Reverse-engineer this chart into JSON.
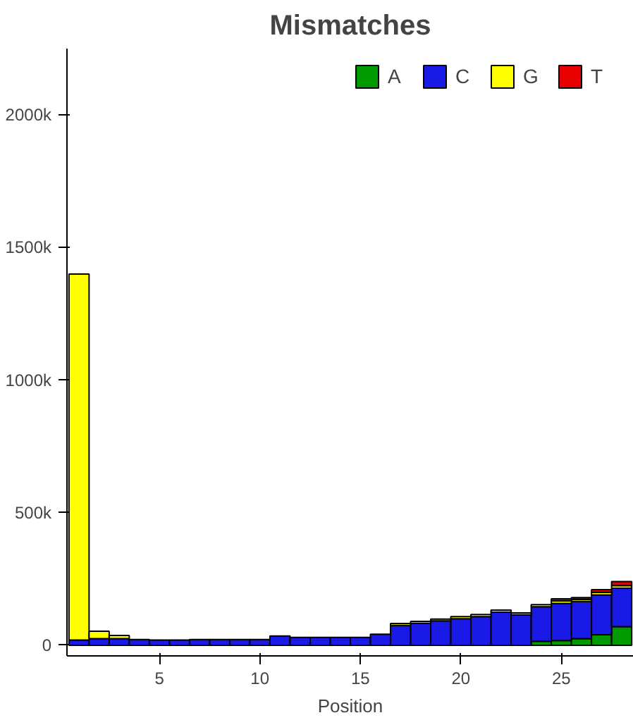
{
  "chart_data": {
    "type": "bar",
    "stacked": true,
    "title": "Mismatches",
    "xlabel": "Position",
    "x": [
      1,
      2,
      3,
      4,
      5,
      6,
      7,
      8,
      9,
      10,
      11,
      12,
      13,
      14,
      15,
      16,
      17,
      18,
      19,
      20,
      21,
      22,
      23,
      24,
      25,
      26,
      27,
      28
    ],
    "series": [
      {
        "name": "A",
        "color": "#009900",
        "values": [
          null,
          null,
          null,
          null,
          null,
          null,
          null,
          null,
          null,
          null,
          null,
          null,
          null,
          null,
          null,
          null,
          null,
          null,
          null,
          null,
          null,
          null,
          null,
          15,
          18,
          25,
          40,
          70
        ]
      },
      {
        "name": "C",
        "color": "#1a1ae6",
        "values": [
          20,
          25,
          25,
          22,
          20,
          20,
          22,
          22,
          22,
          22,
          35,
          30,
          30,
          30,
          30,
          42,
          75,
          83,
          92,
          100,
          108,
          125,
          115,
          130,
          140,
          140,
          150,
          145
        ]
      },
      {
        "name": "G",
        "color": "#ffff00",
        "values": [
          1380,
          28,
          12,
          null,
          null,
          null,
          null,
          null,
          null,
          null,
          null,
          null,
          null,
          null,
          null,
          null,
          7,
          7,
          7,
          8,
          8,
          8,
          7,
          8,
          9,
          8,
          10,
          10
        ]
      },
      {
        "name": "T",
        "color": "#e60000",
        "values": [
          null,
          null,
          null,
          null,
          null,
          null,
          null,
          null,
          null,
          null,
          null,
          null,
          null,
          null,
          null,
          null,
          null,
          null,
          null,
          null,
          null,
          null,
          null,
          null,
          8,
          7,
          10,
          15
        ]
      }
    ],
    "xlim": [
      0.4,
      28.6
    ],
    "xticks": [
      5,
      10,
      15,
      20,
      25
    ],
    "ylim": [
      -40,
      2250
    ],
    "yticks": [
      0,
      {
        "value": 500,
        "label": "500k"
      },
      {
        "value": 1000,
        "label": "1000k"
      },
      {
        "value": 1500,
        "label": "1500k"
      },
      {
        "value": 2000,
        "label": "2000k"
      }
    ],
    "grid": false,
    "legend": "top right"
  }
}
